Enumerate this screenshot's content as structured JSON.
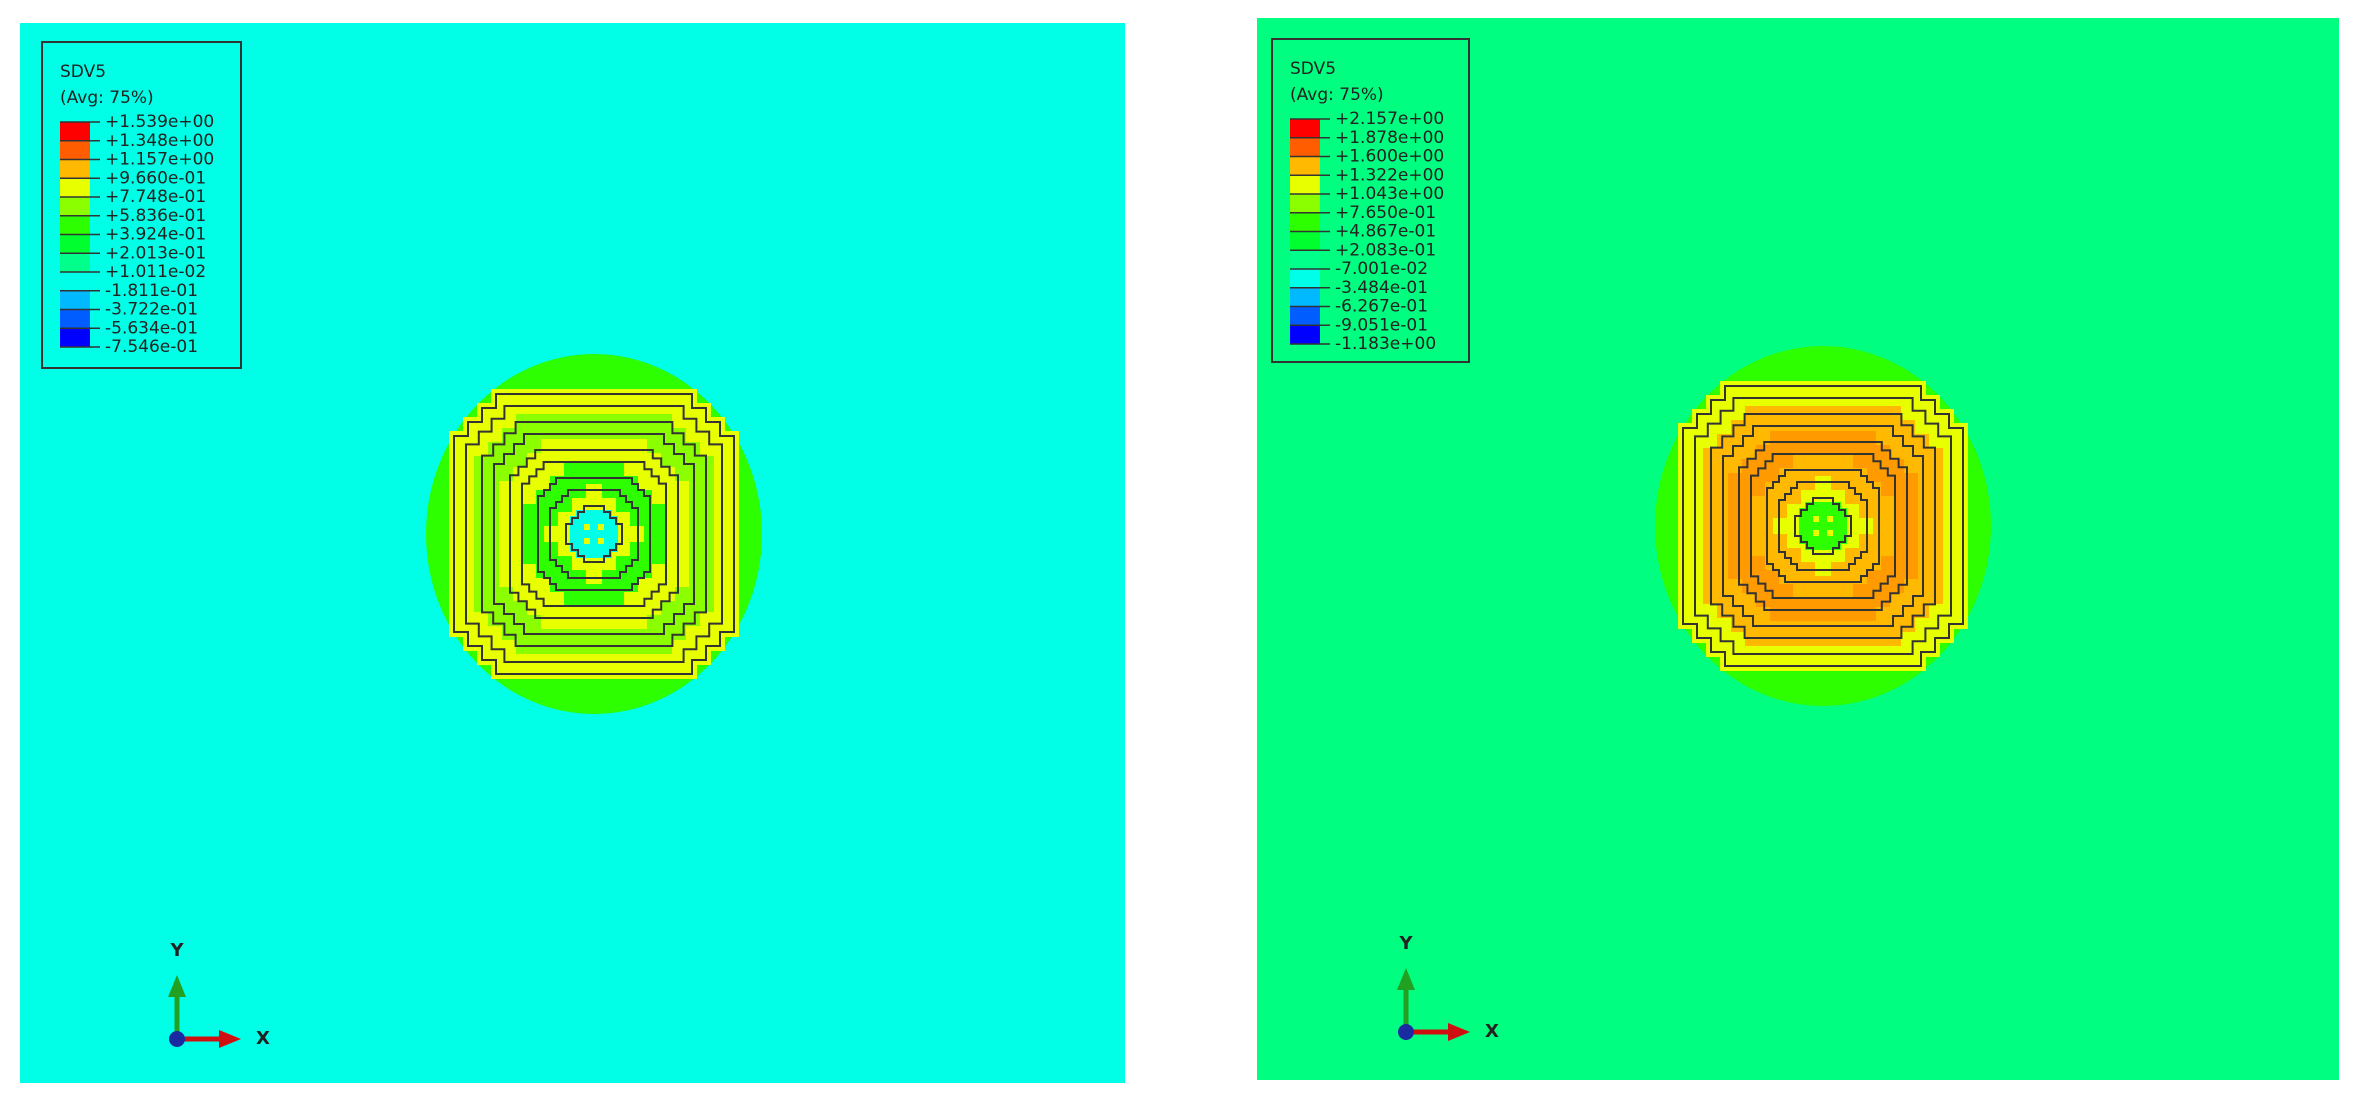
{
  "panels": [
    {
      "legend": {
        "title": "SDV5",
        "subtitle": "(Avg: 75%)",
        "labels": [
          "+1.539e+00",
          "+1.348e+00",
          "+1.157e+00",
          "+9.660e-01",
          "+7.748e-01",
          "+5.836e-01",
          "+3.924e-01",
          "+2.013e-01",
          "+1.011e-02",
          "-1.811e-01",
          "-3.722e-01",
          "-5.634e-01",
          "-7.546e-01"
        ]
      },
      "triad": {
        "y": "Y",
        "x": "X"
      }
    },
    {
      "legend": {
        "title": "SDV5",
        "subtitle": "(Avg: 75%)",
        "labels": [
          "+2.157e+00",
          "+1.878e+00",
          "+1.600e+00",
          "+1.322e+00",
          "+1.043e+00",
          "+7.650e-01",
          "+4.867e-01",
          "+2.083e-01",
          "-7.001e-02",
          "-3.484e-01",
          "-6.267e-01",
          "-9.051e-01",
          "-1.183e+00"
        ]
      },
      "triad": {
        "y": "Y",
        "x": "X"
      }
    }
  ]
}
